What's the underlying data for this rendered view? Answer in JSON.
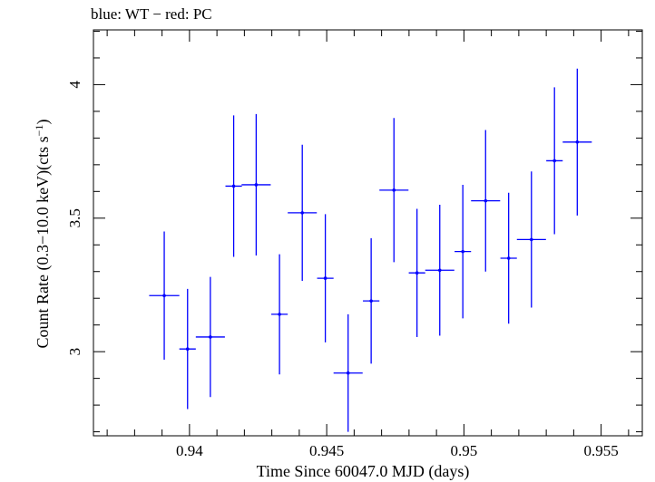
{
  "chart_data": {
    "type": "scatter",
    "title": "blue: WT − red: PC",
    "xlabel": "Time Since 60047.0 MJD (days)",
    "ylabel_main": "Count Rate (0.3−10.0 keV)(cts s",
    "ylabel_sup": "−1",
    "ylabel_close": ")",
    "xlim": [
      0.9365,
      0.9565
    ],
    "ylim": [
      2.685,
      4.205
    ],
    "xticks": [
      {
        "value": 0.94,
        "label": "0.94"
      },
      {
        "value": 0.945,
        "label": "0.945"
      },
      {
        "value": 0.95,
        "label": "0.95"
      },
      {
        "value": 0.955,
        "label": "0.955"
      }
    ],
    "yticks": [
      {
        "value": 3.0,
        "label": "3"
      },
      {
        "value": 3.5,
        "label": "3.5"
      },
      {
        "value": 4.0,
        "label": "4"
      }
    ],
    "series": [
      {
        "color": "#0000ff",
        "points": [
          {
            "x": 0.93908,
            "xerr": 0.00055,
            "y": 3.21,
            "yerr": 0.24
          },
          {
            "x": 0.93993,
            "xerr": 0.0003,
            "y": 3.01,
            "yerr": 0.225
          },
          {
            "x": 0.94076,
            "xerr": 0.00053,
            "y": 3.055,
            "yerr": 0.225
          },
          {
            "x": 0.94161,
            "xerr": 0.0003,
            "y": 3.62,
            "yerr": 0.265
          },
          {
            "x": 0.94243,
            "xerr": 0.00053,
            "y": 3.625,
            "yerr": 0.265
          },
          {
            "x": 0.94328,
            "xerr": 0.0003,
            "y": 3.14,
            "yerr": 0.225
          },
          {
            "x": 0.94411,
            "xerr": 0.00053,
            "y": 3.52,
            "yerr": 0.255
          },
          {
            "x": 0.94495,
            "xerr": 0.0003,
            "y": 3.275,
            "yerr": 0.24
          },
          {
            "x": 0.94578,
            "xerr": 0.00053,
            "y": 2.92,
            "yerr": 0.22
          },
          {
            "x": 0.94662,
            "xerr": 0.0003,
            "y": 3.19,
            "yerr": 0.235
          },
          {
            "x": 0.94745,
            "xerr": 0.00053,
            "y": 3.605,
            "yerr": 0.27
          },
          {
            "x": 0.94829,
            "xerr": 0.0003,
            "y": 3.295,
            "yerr": 0.24
          },
          {
            "x": 0.94912,
            "xerr": 0.00053,
            "y": 3.305,
            "yerr": 0.245
          },
          {
            "x": 0.94996,
            "xerr": 0.0003,
            "y": 3.375,
            "yerr": 0.25
          },
          {
            "x": 0.95079,
            "xerr": 0.00053,
            "y": 3.565,
            "yerr": 0.265
          },
          {
            "x": 0.95163,
            "xerr": 0.0003,
            "y": 3.35,
            "yerr": 0.245
          },
          {
            "x": 0.95246,
            "xerr": 0.00053,
            "y": 3.42,
            "yerr": 0.255
          },
          {
            "x": 0.9533,
            "xerr": 0.0003,
            "y": 3.715,
            "yerr": 0.275
          },
          {
            "x": 0.95413,
            "xerr": 0.00053,
            "y": 3.785,
            "yerr": 0.275
          }
        ]
      }
    ]
  }
}
